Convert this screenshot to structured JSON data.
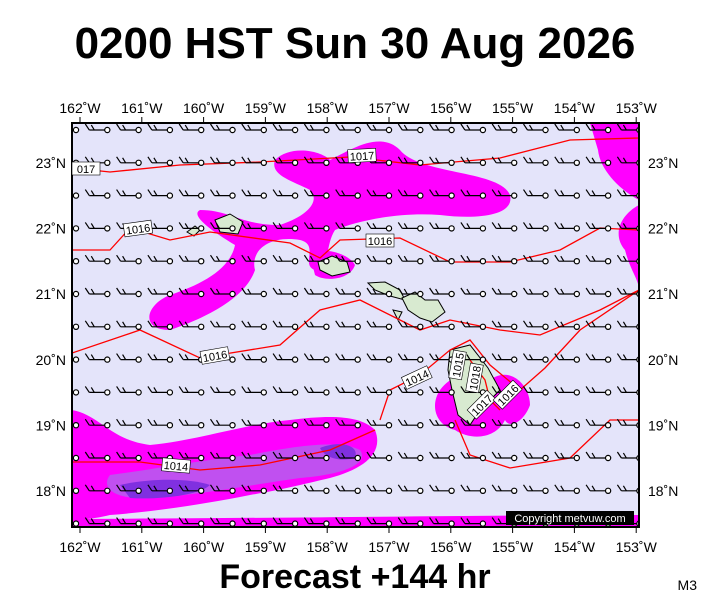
{
  "header": {
    "title": "0200 HST Sun 30 Aug 2026"
  },
  "map": {
    "lon_labels": [
      "162˚W",
      "161˚W",
      "160˚W",
      "159˚W",
      "158˚W",
      "157˚W",
      "156˚W",
      "155˚W",
      "154˚W",
      "153˚W"
    ],
    "lat_labels": [
      "23˚N",
      "22˚N",
      "21˚N",
      "20˚N",
      "19˚N",
      "18˚N"
    ],
    "isobar_labels": [
      "017",
      "1017",
      "1016",
      "1016",
      "1016",
      "1014",
      "1015",
      "1018",
      "1017",
      "1016",
      "1014"
    ],
    "copyright": "Copyright metvuw.com"
  },
  "footer": {
    "text": "Forecast +144 hr",
    "model": "M3"
  }
}
